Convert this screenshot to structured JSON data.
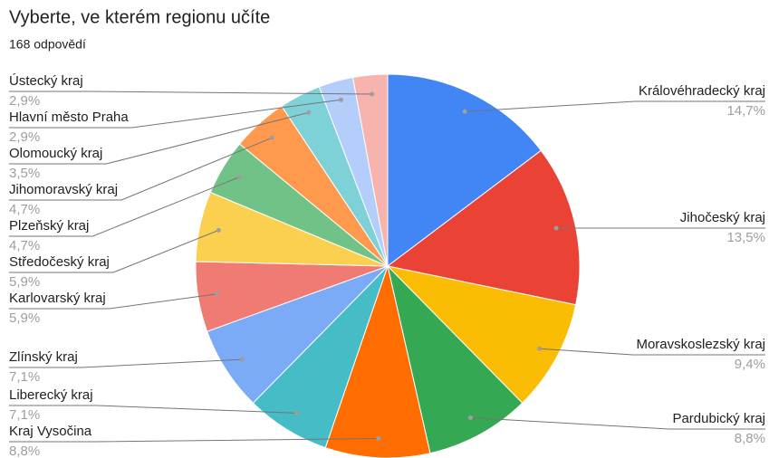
{
  "chart_data": {
    "type": "pie",
    "title": "Vyberte, ve kterém regionu učíte",
    "subtitle": "168 odpovědí",
    "categories": [
      "Královéhradecký kraj",
      "Jihočeský kraj",
      "Moravskoslezský kraj",
      "Pardubický kraj",
      "Kraj Vysočina",
      "Liberecký kraj",
      "Zlínský kraj",
      "Karlovarský kraj",
      "Středočeský kraj",
      "Plzeňský kraj",
      "Jihomoravský kraj",
      "Olomoucký kraj",
      "Hlavní město Praha",
      "Ústecký kraj"
    ],
    "values": [
      14.7,
      13.5,
      9.4,
      8.8,
      8.8,
      7.1,
      7.1,
      5.9,
      5.9,
      4.7,
      4.7,
      3.5,
      2.9,
      2.9
    ],
    "value_labels": [
      "14,7%",
      "13,5%",
      "9,4%",
      "8,8%",
      "8,8%",
      "7,1%",
      "7,1%",
      "5,9%",
      "5,9%",
      "4,7%",
      "4,7%",
      "3,5%",
      "2,9%",
      "2,9%"
    ],
    "colors": [
      "#4285f4",
      "#ea4335",
      "#fbbc04",
      "#34a853",
      "#ff6d01",
      "#46bdc6",
      "#7baaf7",
      "#f07b72",
      "#fcd04f",
      "#71c287",
      "#ff994d",
      "#7ed1d7",
      "#b3cefb",
      "#f7b4ae"
    ]
  }
}
